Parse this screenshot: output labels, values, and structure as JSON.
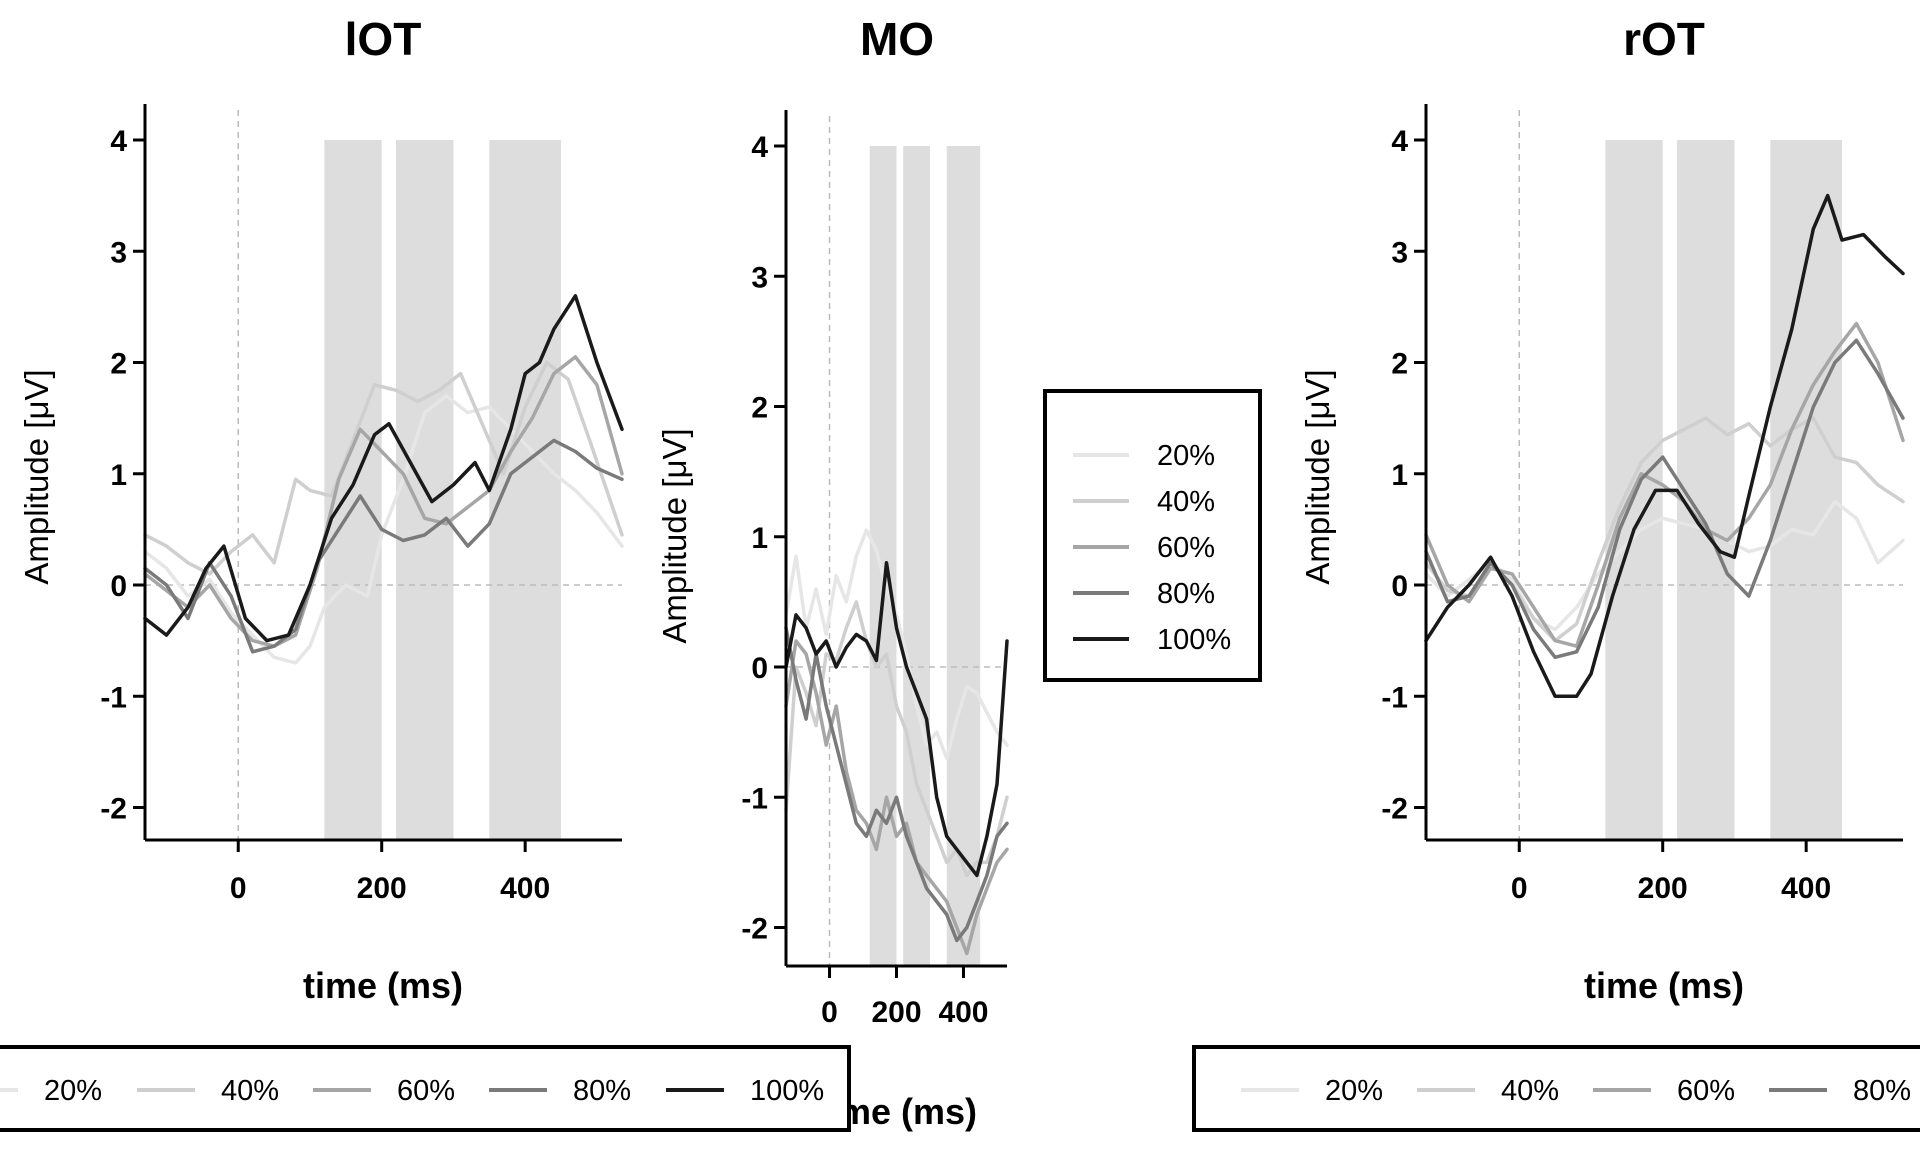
{
  "chart_data": [
    {
      "type": "line",
      "title": "lOT",
      "xlabel": "time (ms)",
      "ylabel": "Amplitude [μV]",
      "xlim": [
        -130,
        535
      ],
      "ylim": [
        -2.3,
        4.3
      ],
      "xticks": [
        0,
        200,
        400
      ],
      "yticks": [
        -2,
        -1,
        0,
        1,
        2,
        3,
        4
      ],
      "ref_lines": {
        "x": 0,
        "y": 0
      },
      "shaded_windows": [
        [
          120,
          200
        ],
        [
          220,
          300
        ],
        [
          350,
          450
        ]
      ],
      "series": [
        {
          "name": "20%",
          "color": "#e6e6e6",
          "x": [
            -130,
            -100,
            -70,
            -40,
            -10,
            20,
            50,
            80,
            100,
            120,
            150,
            180,
            200,
            230,
            260,
            290,
            320,
            350,
            380,
            410,
            440,
            470,
            500,
            535
          ],
          "y": [
            0.3,
            0.15,
            -0.1,
            0.05,
            -0.25,
            -0.45,
            -0.65,
            -0.7,
            -0.55,
            -0.2,
            0.0,
            -0.1,
            0.45,
            0.95,
            1.55,
            1.7,
            1.55,
            1.6,
            1.4,
            1.2,
            1.0,
            0.85,
            0.65,
            0.35
          ]
        },
        {
          "name": "40%",
          "color": "#cfcfcf",
          "x": [
            -130,
            -100,
            -70,
            -40,
            -10,
            20,
            50,
            80,
            100,
            130,
            160,
            190,
            220,
            250,
            280,
            310,
            340,
            370,
            400,
            430,
            460,
            490,
            535
          ],
          "y": [
            0.45,
            0.35,
            0.2,
            0.1,
            0.3,
            0.45,
            0.2,
            0.95,
            0.85,
            0.8,
            1.3,
            1.8,
            1.75,
            1.65,
            1.75,
            1.9,
            1.45,
            1.0,
            1.6,
            2.0,
            1.85,
            1.3,
            0.45
          ]
        },
        {
          "name": "60%",
          "color": "#a6a6a6",
          "x": [
            -130,
            -100,
            -70,
            -40,
            -10,
            20,
            50,
            80,
            110,
            140,
            170,
            200,
            230,
            260,
            290,
            320,
            350,
            380,
            410,
            440,
            470,
            500,
            535
          ],
          "y": [
            0.1,
            -0.05,
            -0.2,
            0.0,
            -0.3,
            -0.5,
            -0.55,
            -0.45,
            0.15,
            0.95,
            1.4,
            1.2,
            1.0,
            0.6,
            0.55,
            0.7,
            0.85,
            1.2,
            1.5,
            1.9,
            2.05,
            1.8,
            1.0
          ]
        },
        {
          "name": "80%",
          "color": "#7a7a7a",
          "x": [
            -130,
            -100,
            -70,
            -40,
            -10,
            20,
            50,
            80,
            110,
            140,
            170,
            200,
            230,
            260,
            290,
            320,
            350,
            380,
            410,
            440,
            470,
            500,
            535
          ],
          "y": [
            0.15,
            0.0,
            -0.3,
            0.2,
            -0.1,
            -0.6,
            -0.55,
            -0.4,
            0.2,
            0.5,
            0.8,
            0.5,
            0.4,
            0.45,
            0.6,
            0.35,
            0.55,
            1.0,
            1.15,
            1.3,
            1.2,
            1.05,
            0.95
          ]
        },
        {
          "name": "100%",
          "color": "#1a1a1a",
          "x": [
            -130,
            -100,
            -70,
            -45,
            -20,
            10,
            40,
            70,
            100,
            130,
            160,
            190,
            210,
            240,
            270,
            300,
            330,
            350,
            380,
            400,
            420,
            440,
            470,
            500,
            535
          ],
          "y": [
            -0.3,
            -0.45,
            -0.2,
            0.15,
            0.35,
            -0.3,
            -0.5,
            -0.45,
            0.0,
            0.6,
            0.9,
            1.35,
            1.45,
            1.1,
            0.75,
            0.9,
            1.1,
            0.85,
            1.4,
            1.9,
            2.0,
            2.3,
            2.6,
            2.0,
            1.4
          ]
        }
      ]
    },
    {
      "type": "line",
      "title": "MO",
      "xlabel": "time (ms)",
      "ylabel": "Amplitude [μV]",
      "xlim": [
        -130,
        530
      ],
      "ylim": [
        -2.3,
        4.3
      ],
      "xticks": [
        0,
        200,
        400
      ],
      "yticks": [
        -2,
        -1,
        0,
        1,
        2,
        3,
        4
      ],
      "ref_lines": {
        "x": 0,
        "y": 0
      },
      "shaded_windows": [
        [
          120,
          200
        ],
        [
          220,
          300
        ],
        [
          350,
          450
        ]
      ],
      "series": [
        {
          "name": "20%",
          "color": "#e6e6e6",
          "x": [
            -130,
            -100,
            -70,
            -40,
            -10,
            20,
            50,
            80,
            110,
            140,
            170,
            200,
            230,
            260,
            290,
            320,
            350,
            380,
            410,
            440,
            470,
            500,
            530
          ],
          "y": [
            0.4,
            0.85,
            0.3,
            0.6,
            0.25,
            0.7,
            0.5,
            0.85,
            1.05,
            0.9,
            0.6,
            0.4,
            0.1,
            -0.3,
            -0.6,
            -0.5,
            -0.7,
            -0.4,
            -0.15,
            -0.2,
            -0.35,
            -0.5,
            -0.6
          ]
        },
        {
          "name": "40%",
          "color": "#cfcfcf",
          "x": [
            -130,
            -100,
            -70,
            -40,
            -10,
            20,
            50,
            80,
            110,
            140,
            170,
            200,
            230,
            260,
            290,
            320,
            350,
            380,
            410,
            440,
            470,
            500,
            530
          ],
          "y": [
            -1.1,
            0.0,
            -0.2,
            -0.45,
            0.1,
            0.05,
            0.3,
            0.5,
            0.2,
            0.0,
            0.1,
            -0.3,
            -0.5,
            -0.9,
            -1.1,
            -1.3,
            -1.5,
            -1.4,
            -1.6,
            -1.5,
            -1.5,
            -1.3,
            -1.0
          ]
        },
        {
          "name": "60%",
          "color": "#a6a6a6",
          "x": [
            -130,
            -100,
            -70,
            -40,
            -10,
            20,
            50,
            80,
            110,
            140,
            170,
            200,
            230,
            260,
            290,
            320,
            350,
            380,
            410,
            440,
            470,
            500,
            530
          ],
          "y": [
            -0.3,
            0.2,
            0.1,
            -0.2,
            -0.6,
            -0.3,
            -0.8,
            -1.1,
            -1.2,
            -1.4,
            -1.0,
            -1.3,
            -1.2,
            -1.5,
            -1.6,
            -1.7,
            -1.8,
            -2.0,
            -2.2,
            -1.9,
            -1.7,
            -1.5,
            -1.4
          ]
        },
        {
          "name": "80%",
          "color": "#7a7a7a",
          "x": [
            -130,
            -100,
            -70,
            -40,
            -10,
            20,
            50,
            80,
            110,
            140,
            170,
            200,
            230,
            260,
            290,
            320,
            350,
            380,
            410,
            440,
            470,
            500,
            530
          ],
          "y": [
            0.3,
            -0.1,
            -0.4,
            0.1,
            -0.3,
            -0.6,
            -0.9,
            -1.2,
            -1.3,
            -1.1,
            -1.2,
            -1.0,
            -1.3,
            -1.5,
            -1.7,
            -1.8,
            -1.9,
            -2.1,
            -2.0,
            -1.8,
            -1.6,
            -1.3,
            -1.2
          ]
        },
        {
          "name": "100%",
          "color": "#1a1a1a",
          "x": [
            -130,
            -100,
            -70,
            -40,
            -10,
            20,
            50,
            80,
            110,
            140,
            170,
            200,
            230,
            260,
            290,
            320,
            350,
            380,
            410,
            440,
            470,
            500,
            530
          ],
          "y": [
            0.0,
            0.4,
            0.3,
            0.1,
            0.2,
            0.0,
            0.15,
            0.25,
            0.2,
            0.05,
            0.8,
            0.3,
            0.0,
            -0.2,
            -0.4,
            -1.0,
            -1.3,
            -1.4,
            -1.5,
            -1.6,
            -1.3,
            -0.9,
            0.2
          ]
        }
      ]
    },
    {
      "type": "line",
      "title": "rOT",
      "xlabel": "time (ms)",
      "ylabel": "Amplitude [μV]",
      "xlim": [
        -130,
        535
      ],
      "ylim": [
        -2.3,
        4.3
      ],
      "xticks": [
        0,
        200,
        400
      ],
      "yticks": [
        -2,
        -1,
        0,
        1,
        2,
        3,
        4
      ],
      "ref_lines": {
        "x": 0,
        "y": 0
      },
      "shaded_windows": [
        [
          120,
          200
        ],
        [
          220,
          300
        ],
        [
          350,
          450
        ]
      ],
      "series": [
        {
          "name": "20%",
          "color": "#e6e6e6",
          "x": [
            -130,
            -100,
            -70,
            -40,
            -10,
            20,
            50,
            80,
            110,
            140,
            170,
            200,
            230,
            260,
            290,
            320,
            350,
            380,
            410,
            440,
            470,
            500,
            535
          ],
          "y": [
            0.1,
            -0.1,
            0.05,
            0.2,
            0.05,
            -0.3,
            -0.4,
            -0.2,
            0.1,
            0.3,
            0.5,
            0.6,
            0.55,
            0.5,
            0.4,
            0.3,
            0.35,
            0.5,
            0.45,
            0.75,
            0.6,
            0.2,
            0.4
          ]
        },
        {
          "name": "40%",
          "color": "#cfcfcf",
          "x": [
            -130,
            -100,
            -70,
            -40,
            -10,
            20,
            50,
            80,
            110,
            140,
            170,
            200,
            230,
            260,
            290,
            320,
            350,
            380,
            410,
            440,
            470,
            500,
            535
          ],
          "y": [
            0.2,
            -0.05,
            -0.1,
            0.2,
            0.0,
            -0.3,
            -0.5,
            -0.35,
            0.2,
            0.7,
            1.1,
            1.3,
            1.4,
            1.5,
            1.35,
            1.45,
            1.25,
            1.4,
            1.5,
            1.15,
            1.1,
            0.9,
            0.75
          ]
        },
        {
          "name": "60%",
          "color": "#a6a6a6",
          "x": [
            -130,
            -100,
            -70,
            -40,
            -10,
            20,
            50,
            80,
            110,
            140,
            170,
            200,
            230,
            260,
            290,
            320,
            350,
            380,
            410,
            440,
            470,
            500,
            535
          ],
          "y": [
            0.45,
            0.0,
            -0.15,
            0.15,
            0.1,
            -0.2,
            -0.5,
            -0.55,
            0.0,
            0.6,
            1.0,
            0.9,
            0.75,
            0.5,
            0.4,
            0.6,
            0.9,
            1.4,
            1.8,
            2.1,
            2.35,
            2.0,
            1.3
          ]
        },
        {
          "name": "80%",
          "color": "#7a7a7a",
          "x": [
            -130,
            -100,
            -70,
            -40,
            -10,
            20,
            50,
            80,
            110,
            140,
            170,
            200,
            230,
            260,
            290,
            320,
            350,
            380,
            410,
            440,
            470,
            500,
            535
          ],
          "y": [
            0.3,
            -0.15,
            -0.1,
            0.2,
            0.0,
            -0.4,
            -0.65,
            -0.6,
            -0.2,
            0.5,
            0.95,
            1.15,
            0.85,
            0.55,
            0.1,
            -0.1,
            0.4,
            1.0,
            1.6,
            2.0,
            2.2,
            1.9,
            1.5
          ]
        },
        {
          "name": "100%",
          "color": "#1a1a1a",
          "x": [
            -130,
            -100,
            -70,
            -40,
            -10,
            20,
            50,
            80,
            100,
            130,
            160,
            190,
            220,
            250,
            280,
            300,
            320,
            350,
            380,
            410,
            430,
            450,
            480,
            510,
            535
          ],
          "y": [
            -0.5,
            -0.2,
            0.0,
            0.25,
            -0.1,
            -0.6,
            -1.0,
            -1.0,
            -0.8,
            -0.1,
            0.5,
            0.85,
            0.85,
            0.55,
            0.3,
            0.25,
            0.8,
            1.6,
            2.3,
            3.2,
            3.5,
            3.1,
            3.15,
            2.95,
            2.8
          ]
        }
      ]
    }
  ],
  "legends": [
    {
      "items": [
        "20%",
        "40%",
        "60%",
        "80%",
        "100%"
      ],
      "colors": [
        "#e6e6e6",
        "#cfcfcf",
        "#a6a6a6",
        "#7a7a7a",
        "#1a1a1a"
      ],
      "placement": "right-of-MO",
      "orientation": "vertical"
    },
    {
      "items": [
        "20%",
        "40%",
        "60%",
        "80%",
        "100%"
      ],
      "colors": [
        "#e6e6e6",
        "#cfcfcf",
        "#a6a6a6",
        "#7a7a7a",
        "#1a1a1a"
      ],
      "placement": "bottom-left",
      "orientation": "horizontal"
    },
    {
      "items": [
        "20%",
        "40%",
        "60%",
        "80%"
      ],
      "colors": [
        "#e6e6e6",
        "#cfcfcf",
        "#a6a6a6",
        "#7a7a7a"
      ],
      "placement": "bottom-right",
      "orientation": "horizontal"
    }
  ]
}
